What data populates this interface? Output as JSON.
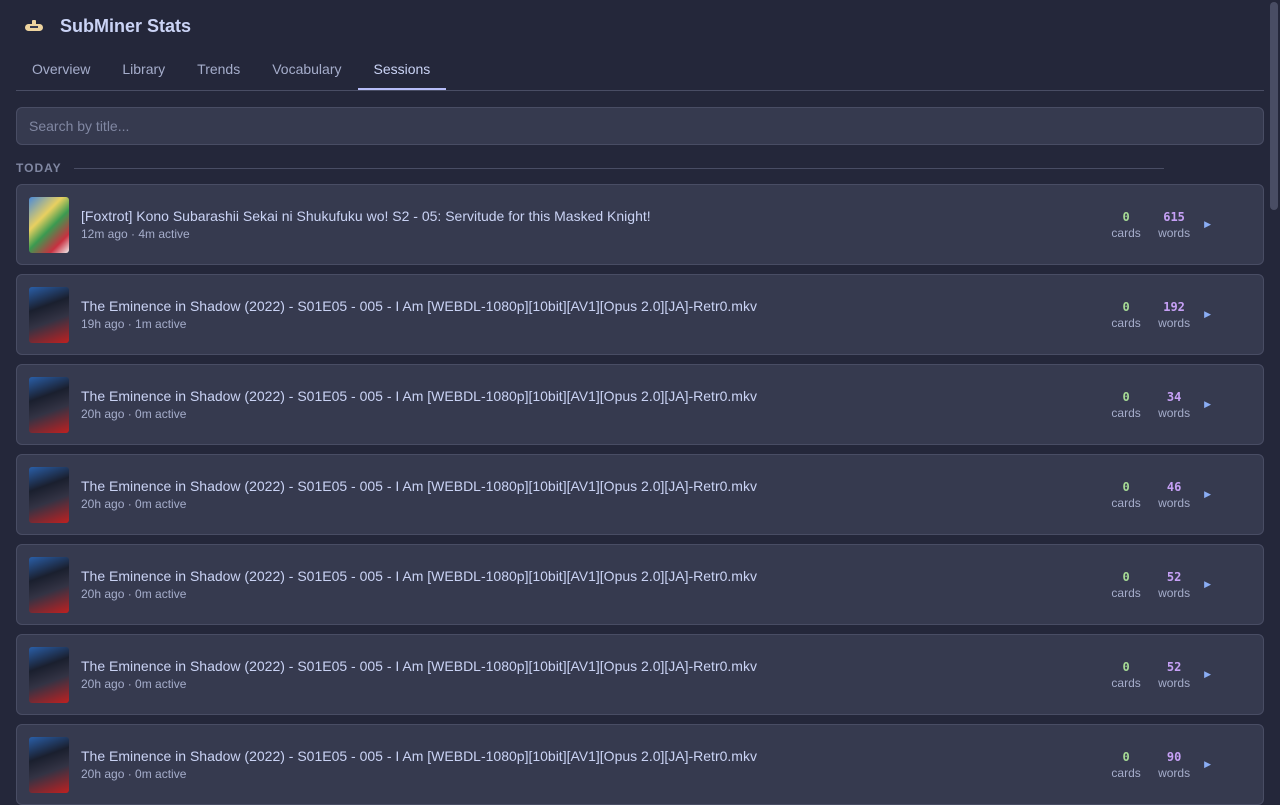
{
  "app": {
    "title": "SubMiner Stats",
    "logo": "submarine-icon"
  },
  "tabs": [
    {
      "label": "Overview"
    },
    {
      "label": "Library"
    },
    {
      "label": "Trends"
    },
    {
      "label": "Vocabulary"
    },
    {
      "label": "Sessions",
      "active": true
    }
  ],
  "search": {
    "placeholder": "Search by title...",
    "value": ""
  },
  "group": {
    "label": "TODAY"
  },
  "colors": {
    "background": "#24273a",
    "card": "#363a4f",
    "cards": "#a6da95",
    "words": "#c6a0f6",
    "accent": "#b7bdf8"
  },
  "sessions": [
    {
      "title": "[Foxtrot] Kono Subarashii Sekai ni Shukufuku wo! S2 - 05: Servitude for this Masked Knight!",
      "meta": "12m ago · 4m active",
      "cards": "0",
      "cards_label": "cards",
      "words": "615",
      "words_label": "words",
      "play": "▶"
    },
    {
      "title": "The Eminence in Shadow (2022) - S01E05 - 005 - I Am [WEBDL-1080p][10bit][AV1][Opus 2.0][JA]-Retr0.mkv",
      "meta": "19h ago · 1m active",
      "cards": "0",
      "cards_label": "cards",
      "words": "192",
      "words_label": "words",
      "play": "▶"
    },
    {
      "title": "The Eminence in Shadow (2022) - S01E05 - 005 - I Am [WEBDL-1080p][10bit][AV1][Opus 2.0][JA]-Retr0.mkv",
      "meta": "20h ago · 0m active",
      "cards": "0",
      "cards_label": "cards",
      "words": "34",
      "words_label": "words",
      "play": "▶"
    },
    {
      "title": "The Eminence in Shadow (2022) - S01E05 - 005 - I Am [WEBDL-1080p][10bit][AV1][Opus 2.0][JA]-Retr0.mkv",
      "meta": "20h ago · 0m active",
      "cards": "0",
      "cards_label": "cards",
      "words": "46",
      "words_label": "words",
      "play": "▶"
    },
    {
      "title": "The Eminence in Shadow (2022) - S01E05 - 005 - I Am [WEBDL-1080p][10bit][AV1][Opus 2.0][JA]-Retr0.mkv",
      "meta": "20h ago · 0m active",
      "cards": "0",
      "cards_label": "cards",
      "words": "52",
      "words_label": "words",
      "play": "▶"
    },
    {
      "title": "The Eminence in Shadow (2022) - S01E05 - 005 - I Am [WEBDL-1080p][10bit][AV1][Opus 2.0][JA]-Retr0.mkv",
      "meta": "20h ago · 0m active",
      "cards": "0",
      "cards_label": "cards",
      "words": "52",
      "words_label": "words",
      "play": "▶"
    },
    {
      "title": "The Eminence in Shadow (2022) - S01E05 - 005 - I Am [WEBDL-1080p][10bit][AV1][Opus 2.0][JA]-Retr0.mkv",
      "meta": "20h ago · 0m active",
      "cards": "0",
      "cards_label": "cards",
      "words": "90",
      "words_label": "words",
      "play": "▶"
    }
  ]
}
